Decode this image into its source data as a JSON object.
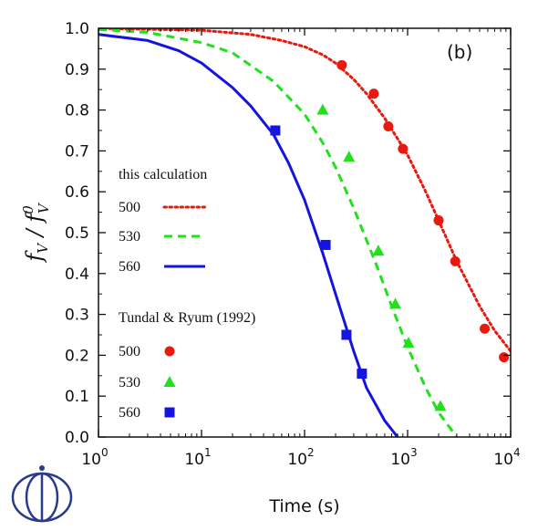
{
  "chart_data": {
    "type": "line",
    "panel_label": "(b)",
    "xlabel": "Time (s)",
    "ylabel": {
      "base": "f",
      "sub": "V",
      "denominator_base": "f",
      "denominator_sup": "0",
      "denominator_sub": "V"
    },
    "xscale": "log",
    "xlim": [
      1,
      10000
    ],
    "ylim": [
      0,
      1.0
    ],
    "xticks": [
      {
        "value": 1,
        "base": "10",
        "exp": "0"
      },
      {
        "value": 10,
        "base": "10",
        "exp": "1"
      },
      {
        "value": 100,
        "base": "10",
        "exp": "2"
      },
      {
        "value": 1000,
        "base": "10",
        "exp": "3"
      },
      {
        "value": 10000,
        "base": "10",
        "exp": "4"
      }
    ],
    "yticks": [
      "0.0",
      "0.1",
      "0.2",
      "0.3",
      "0.4",
      "0.5",
      "0.6",
      "0.7",
      "0.8",
      "0.9",
      "1.0"
    ],
    "legend": {
      "calc_title": "this calculation",
      "exp_title": "Tundal & Ryum (1992)",
      "calc_entries": [
        "500",
        "530",
        "560"
      ],
      "exp_entries": [
        "500",
        "530",
        "560"
      ]
    },
    "series": [
      {
        "name": "500",
        "kind": "calculation",
        "color": "#e8190e",
        "dash": "dotted",
        "x": [
          1,
          10,
          30,
          60,
          100,
          150,
          200,
          300,
          400,
          600,
          800,
          1000,
          1500,
          2000,
          3000,
          5000,
          7000,
          10000
        ],
        "y": [
          1.0,
          0.995,
          0.985,
          0.97,
          0.955,
          0.935,
          0.915,
          0.875,
          0.84,
          0.78,
          0.73,
          0.69,
          0.6,
          0.53,
          0.43,
          0.32,
          0.26,
          0.21
        ]
      },
      {
        "name": "530",
        "kind": "calculation",
        "color": "#22e01c",
        "dash": "dashed",
        "x": [
          1,
          3,
          10,
          20,
          50,
          100,
          150,
          200,
          300,
          500,
          700,
          1000,
          1500,
          2000,
          3000
        ],
        "y": [
          0.997,
          0.99,
          0.965,
          0.94,
          0.87,
          0.79,
          0.72,
          0.66,
          0.56,
          0.42,
          0.32,
          0.22,
          0.12,
          0.06,
          0.0
        ]
      },
      {
        "name": "560",
        "kind": "calculation",
        "color": "#1414e0",
        "dash": "solid",
        "x": [
          1,
          3,
          6,
          10,
          20,
          30,
          50,
          70,
          100,
          150,
          200,
          300,
          400,
          600,
          800
        ],
        "y": [
          0.985,
          0.97,
          0.945,
          0.915,
          0.855,
          0.81,
          0.74,
          0.67,
          0.58,
          0.45,
          0.35,
          0.21,
          0.12,
          0.04,
          0.0
        ]
      },
      {
        "name": "500",
        "kind": "experiment",
        "color": "#e8190e",
        "marker": "circle",
        "x": [
          230,
          470,
          650,
          900,
          2000,
          2900,
          5600,
          8600
        ],
        "y": [
          0.91,
          0.84,
          0.76,
          0.705,
          0.53,
          0.43,
          0.265,
          0.195
        ]
      },
      {
        "name": "530",
        "kind": "experiment",
        "color": "#22e01c",
        "marker": "triangle",
        "x": [
          150,
          270,
          520,
          760,
          1020,
          2080
        ],
        "y": [
          0.8,
          0.685,
          0.455,
          0.325,
          0.23,
          0.075
        ]
      },
      {
        "name": "560",
        "kind": "experiment",
        "color": "#1414e0",
        "marker": "square",
        "x": [
          52,
          160,
          255,
          360
        ],
        "y": [
          0.75,
          0.47,
          0.25,
          0.155
        ]
      }
    ]
  }
}
